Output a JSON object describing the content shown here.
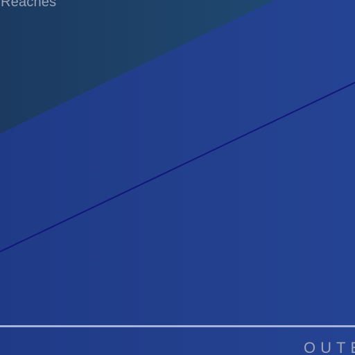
{
  "heading": {
    "text": "Reaches"
  },
  "footer": {
    "text": "OUTE"
  },
  "colors": {
    "background_blue": "#223f8c",
    "teal_panel": "#1e3f67",
    "diagonal_line": "#12167a",
    "divider": "#a9b4dc",
    "text": "#9ea6b8"
  }
}
